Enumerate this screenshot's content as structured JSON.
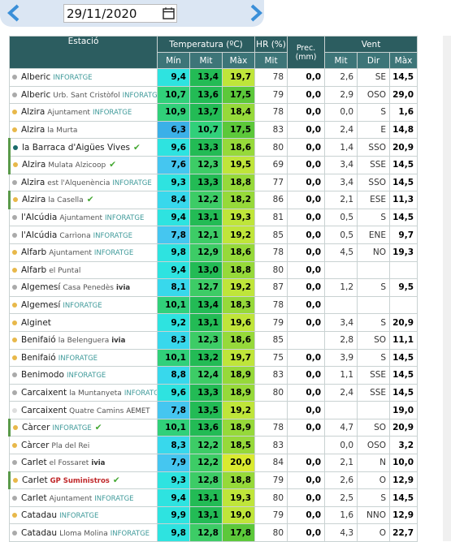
{
  "date": "29/11/2020",
  "header": {
    "station": "Estació",
    "temperature": "Temperatura (ºC)",
    "humidity": "HR (%)",
    "precipitation": "Prec. (mm)",
    "wind": "Vent",
    "sub": [
      "Mín",
      "Mit",
      "Màx",
      "Mit",
      "Mit",
      "Dir",
      "Màx"
    ]
  },
  "temperature_colors": [
    {
      "from": 0,
      "color": "#3bb0e8"
    },
    {
      "from": 7,
      "color": "#45c6f0"
    },
    {
      "from": 8,
      "color": "#38d8ec"
    },
    {
      "from": 9,
      "color": "#2ee3e0"
    },
    {
      "from": 10,
      "color": "#31d07a"
    },
    {
      "from": 12,
      "color": "#3dcc66"
    },
    {
      "from": 13,
      "color": "#23bb55"
    },
    {
      "from": 17,
      "color": "#5cc83a"
    },
    {
      "from": 18,
      "color": "#96d93a"
    },
    {
      "from": 19,
      "color": "#bfe53a"
    },
    {
      "from": 20,
      "color": "#d9ea30"
    }
  ],
  "rows": [
    {
      "name": "Alberic",
      "network": "INFORATGE",
      "dot": "#aaaaaa",
      "values": [
        "9,4",
        "13,4",
        "19,7",
        "78",
        "0,0",
        "2,6",
        "SE",
        "14,5"
      ]
    },
    {
      "name": "Alberic",
      "detail": "Urb. Sant Cristòfol",
      "network": "INFORATGE",
      "dot": "#aaaaaa",
      "values": [
        "10,7",
        "13,6",
        "17,5",
        "79",
        "0,0",
        "2,9",
        "OSO",
        "29,0"
      ]
    },
    {
      "name": "Alzira",
      "detail": "Ajuntament",
      "network": "INFORATGE",
      "dot": "#e8b84a",
      "values": [
        "10,9",
        "13,7",
        "18,4",
        "78",
        "0,0",
        "0,0",
        "S",
        "1,6"
      ]
    },
    {
      "name": "Alzira",
      "detail": "la Murta",
      "dot": "#e8b84a",
      "values": [
        "6,3",
        "10,7",
        "17,5",
        "83",
        "0,0",
        "2,4",
        "E",
        "14,8"
      ]
    },
    {
      "name": "la Barraca d'Aigües Vives",
      "dot": "#1a6a6a",
      "verified": true,
      "values": [
        "9,6",
        "13,3",
        "18,6",
        "80",
        "0,0",
        "1,4",
        "SSO",
        "20,9"
      ]
    },
    {
      "name": "Alzira",
      "detail": "Mulata Alzicoop",
      "dot": "#e8b84a",
      "verified": true,
      "values": [
        "7,6",
        "12,3",
        "19,5",
        "69",
        "0,0",
        "3,4",
        "SSE",
        "14,5"
      ]
    },
    {
      "name": "Alzira",
      "detail": "est l'Alquenència",
      "network": "INFORATGE",
      "dot": "#aaaaaa",
      "values": [
        "9,3",
        "13,3",
        "18,8",
        "77",
        "0,0",
        "3,4",
        "SSO",
        "14,5"
      ]
    },
    {
      "name": "Alzira",
      "detail": "la Casella",
      "dot": "#e8b84a",
      "verified": true,
      "values": [
        "8,4",
        "12,2",
        "18,2",
        "86",
        "0,0",
        "2,1",
        "ESE",
        "11,3"
      ]
    },
    {
      "name": "l'Alcúdia",
      "detail": "Ajuntament",
      "network": "INFORATGE",
      "dot": "#aaaaaa",
      "values": [
        "9,4",
        "13,1",
        "19,3",
        "81",
        "0,0",
        "0,5",
        "S",
        "14,5"
      ]
    },
    {
      "name": "l'Alcúdia",
      "detail": "Carrìona",
      "network": "INFORATGE",
      "dot": "#aaaaaa",
      "values": [
        "7,8",
        "12,1",
        "19,2",
        "85",
        "0,0",
        "0,5",
        "ENE",
        "9,7"
      ]
    },
    {
      "name": "Alfarb",
      "detail": "Ajuntament",
      "network": "INFORATGE",
      "dot": "#e8b84a",
      "values": [
        "9,8",
        "12,9",
        "18,6",
        "78",
        "0,0",
        "4,5",
        "NO",
        "19,3"
      ]
    },
    {
      "name": "Alfarb",
      "detail": "el Puntal",
      "dot": "#e8b84a",
      "values": [
        "9,4",
        "13,0",
        "18,8",
        "80",
        "0,0",
        null,
        null,
        null
      ]
    },
    {
      "name": "Algemesí",
      "detail": "Casa Penedès",
      "network": "ivia",
      "dot": "#aaaaaa",
      "values": [
        "8,1",
        "12,7",
        "19,2",
        "87",
        "0,0",
        "1,2",
        "S",
        "9,5"
      ]
    },
    {
      "name": "Algemesí",
      "network": "INFORATGE",
      "dot": "#e8b84a",
      "values": [
        "10,1",
        "13,4",
        "18,3",
        "78",
        "0,0",
        null,
        null,
        null
      ]
    },
    {
      "name": "Alginet",
      "dot": "#e8b84a",
      "values": [
        "9,2",
        "13,1",
        "19,6",
        "79",
        "0,0",
        "3,4",
        "S",
        "20,9"
      ]
    },
    {
      "name": "Benifaió",
      "detail": "la Belenguera",
      "network": "ivia",
      "dot": "#e8b84a",
      "values": [
        "8,3",
        "12,3",
        "18,6",
        "85",
        null,
        "2,8",
        "SO",
        "11,1"
      ]
    },
    {
      "name": "Benifaió",
      "network": "INFORATGE",
      "dot": "#e8b84a",
      "values": [
        "10,1",
        "13,2",
        "19,7",
        "75",
        "0,0",
        "3,9",
        "S",
        "14,5"
      ]
    },
    {
      "name": "Benimodo",
      "network": "INFORATGE",
      "dot": "#aaaaaa",
      "values": [
        "8,8",
        "12,4",
        "18,9",
        "83",
        "0,0",
        "1,1",
        "SSE",
        "14,5"
      ]
    },
    {
      "name": "Carcaixent",
      "detail": "la Muntanyeta",
      "network": "INFORATGE",
      "dot": "#aaaaaa",
      "values": [
        "9,6",
        "13,3",
        "18,9",
        "80",
        "0,0",
        "2,4",
        "SSE",
        "14,5"
      ]
    },
    {
      "name": "Carcaixent",
      "detail": "Quatre Camins",
      "network": "AEMET",
      "dot": "#dddddd",
      "values": [
        "7,8",
        "13,5",
        "19,2",
        null,
        "0,0",
        null,
        null,
        "19,0"
      ]
    },
    {
      "name": "Càrcer",
      "network": "INFORATGE",
      "dot": "#e8b84a",
      "verified": true,
      "values": [
        "10,1",
        "13,6",
        "18,9",
        "78",
        "0,0",
        "4,7",
        "SO",
        "20,9"
      ]
    },
    {
      "name": "Càrcer",
      "detail": "Pla del Rei",
      "dot": "#e8b84a",
      "values": [
        "8,3",
        "12,2",
        "18,5",
        "83",
        null,
        "0,0",
        "OSO",
        "3,2"
      ]
    },
    {
      "name": "Carlet",
      "detail": "el Fossaret",
      "network": "ivia",
      "dot": "#aaaaaa",
      "values": [
        "7,9",
        "12,2",
        "20,0",
        "84",
        "0,0",
        "2,1",
        "N",
        "10,0"
      ]
    },
    {
      "name": "Carlet",
      "network": "GP Suministros",
      "dot": "#e8b84a",
      "verified": true,
      "values": [
        "9,3",
        "12,8",
        "18,8",
        "79",
        "0,0",
        "2,6",
        "O",
        "12,9"
      ]
    },
    {
      "name": "Carlet",
      "detail": "Ajuntament",
      "network": "INFORATGE",
      "dot": "#aaaaaa",
      "values": [
        "9,4",
        "13,1",
        "19,3",
        "80",
        "0,0",
        "2,5",
        "S",
        "14,5"
      ]
    },
    {
      "name": "Catadau",
      "network": "INFORATGE",
      "dot": "#e8b84a",
      "values": [
        "9,9",
        "13,1",
        "19,0",
        "79",
        "0,0",
        "1,6",
        "NNO",
        "12,9"
      ]
    },
    {
      "name": "Catadau",
      "detail": "Lloma Molina",
      "network": "INFORATGE",
      "dot": "#aaaaaa",
      "values": [
        "9,8",
        "12,8",
        "17,8",
        "80",
        "0,0",
        "4,3",
        "O",
        "22,7"
      ]
    }
  ]
}
